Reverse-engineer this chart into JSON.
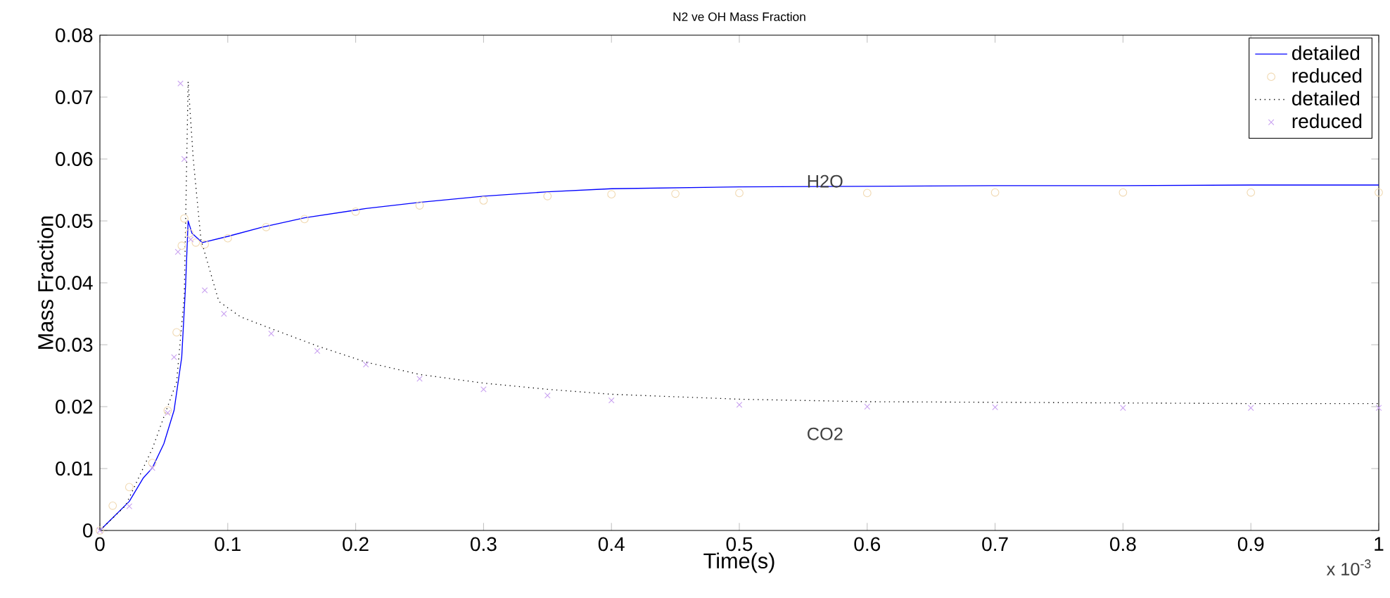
{
  "chart_data": {
    "type": "line",
    "title": "N2 ve OH Mass Fraction",
    "xlabel": "Time(s)",
    "ylabel": "Mass Fraction",
    "xlim": [
      0,
      1
    ],
    "ylim": [
      0,
      0.08
    ],
    "xticks": [
      0,
      0.1,
      0.2,
      0.3,
      0.4,
      0.5,
      0.6,
      0.7,
      0.8,
      0.9,
      1
    ],
    "yticks": [
      0,
      0.01,
      0.02,
      0.03,
      0.04,
      0.05,
      0.06,
      0.07,
      0.08
    ],
    "grid": false,
    "legend": "top right",
    "annotations": [
      "H2O",
      "CO2",
      "x 10$^{-3}$"
    ],
    "series": [
      {
        "name": "detailed",
        "color": "#0000ff",
        "line_style": "solid",
        "marker": "none",
        "x": [
          0,
          0.023,
          0.034,
          0.041,
          0.05,
          0.058,
          0.064,
          0.067,
          0.069,
          0.072,
          0.08,
          0.1,
          0.127,
          0.16,
          0.208,
          0.25,
          0.3,
          0.35,
          0.4,
          0.5,
          0.6,
          0.7,
          0.8,
          0.9,
          1.0
        ],
        "values": [
          0,
          0.0047,
          0.0085,
          0.0101,
          0.014,
          0.0194,
          0.028,
          0.0396,
          0.05,
          0.048,
          0.0465,
          0.0475,
          0.049,
          0.0505,
          0.052,
          0.053,
          0.054,
          0.0547,
          0.0552,
          0.0555,
          0.0556,
          0.0557,
          0.0557,
          0.0558,
          0.0558
        ]
      },
      {
        "name": "reduced",
        "type": "scatter",
        "color": "#f0d8b0",
        "marker": "circle",
        "x": [
          0,
          0.01,
          0.023,
          0.041,
          0.053,
          0.06,
          0.064,
          0.066,
          0.07,
          0.075,
          0.082,
          0.1,
          0.13,
          0.16,
          0.2,
          0.25,
          0.3,
          0.35,
          0.4,
          0.45,
          0.5,
          0.6,
          0.7,
          0.8,
          0.9,
          1.0
        ],
        "values": [
          0,
          0.004,
          0.007,
          0.0109,
          0.0194,
          0.032,
          0.046,
          0.0504,
          0.048,
          0.0465,
          0.0462,
          0.0472,
          0.049,
          0.0503,
          0.0515,
          0.0525,
          0.0533,
          0.054,
          0.0543,
          0.0544,
          0.0545,
          0.0545,
          0.0546,
          0.0546,
          0.0546,
          0.0546
        ]
      },
      {
        "name": "detailed",
        "color": "#000000",
        "line_style": "dotted",
        "marker": "none",
        "x": [
          0,
          0.02,
          0.041,
          0.06,
          0.066,
          0.069,
          0.073,
          0.079,
          0.093,
          0.11,
          0.134,
          0.17,
          0.208,
          0.25,
          0.3,
          0.35,
          0.4,
          0.5,
          0.6,
          0.7,
          0.8,
          0.9,
          1.0
        ],
        "values": [
          0,
          0.004,
          0.0132,
          0.024,
          0.038,
          0.0725,
          0.06,
          0.047,
          0.037,
          0.0345,
          0.0326,
          0.0298,
          0.0272,
          0.0252,
          0.0238,
          0.0228,
          0.022,
          0.0212,
          0.0208,
          0.0207,
          0.0206,
          0.0205,
          0.0205
        ]
      },
      {
        "name": "reduced",
        "type": "scatter",
        "color": "#c8a0f0",
        "marker": "cross",
        "x": [
          0,
          0.023,
          0.041,
          0.053,
          0.058,
          0.061,
          0.063,
          0.066,
          0.071,
          0.082,
          0.097,
          0.134,
          0.17,
          0.208,
          0.25,
          0.3,
          0.35,
          0.4,
          0.5,
          0.6,
          0.7,
          0.8,
          0.9,
          1.0
        ],
        "values": [
          0,
          0.0039,
          0.0101,
          0.019,
          0.028,
          0.045,
          0.0722,
          0.06,
          0.047,
          0.0388,
          0.035,
          0.0318,
          0.029,
          0.0268,
          0.0245,
          0.0228,
          0.0218,
          0.021,
          0.0203,
          0.02,
          0.0199,
          0.0198,
          0.0198,
          0.0198
        ]
      }
    ]
  }
}
